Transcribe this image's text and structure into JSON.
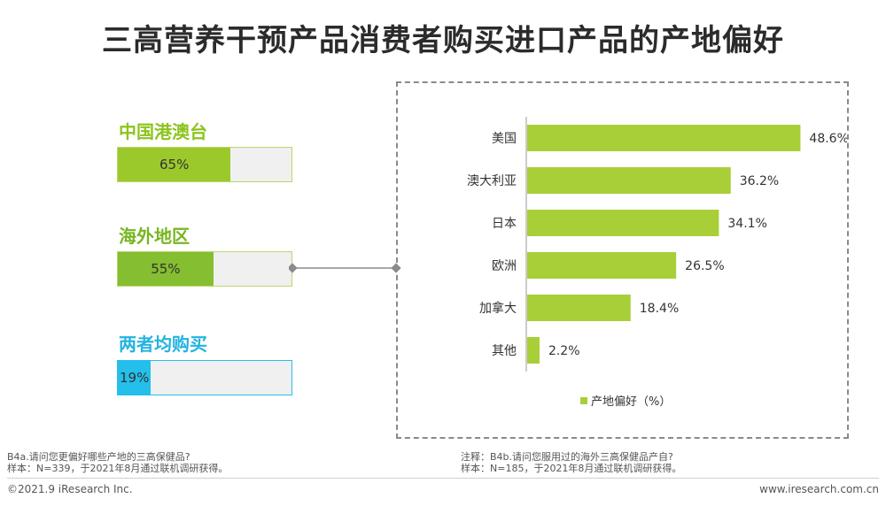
{
  "title": "三高营养干预产品消费者购买进口产品的产地偏好",
  "groups": [
    {
      "label": "中国港澳台",
      "value": 65,
      "value_label": "65%",
      "color": "#9bc92b",
      "text_color": "#8cc41e"
    },
    {
      "label": "海外地区",
      "value": 55,
      "value_label": "55%",
      "color": "#85be30",
      "text_color": "#78b51f"
    },
    {
      "label": "两者均购买",
      "value": 19,
      "value_label": "19%",
      "color": "#24bfea",
      "text_color": "#23b3e0"
    }
  ],
  "chart_data": {
    "type": "bar",
    "orientation": "horizontal",
    "categories": [
      "美国",
      "澳大利亚",
      "日本",
      "欧洲",
      "加拿大",
      "其他"
    ],
    "series": [
      {
        "name": "产地偏好（%）",
        "values": [
          48.6,
          36.2,
          34.1,
          26.5,
          18.4,
          2.2
        ],
        "color": "#a8cf38"
      }
    ],
    "value_labels": [
      "48.6%",
      "36.2%",
      "34.1%",
      "26.5%",
      "18.4%",
      "2.2%"
    ],
    "xlim": [
      0,
      52
    ],
    "legend_position": "bottom-center",
    "grid": false
  },
  "notes": {
    "left_line1": "B4a.请问您更偏好哪些产地的三高保健品?",
    "left_line2": "样本：N=339，于2021年8月通过联机调研获得。",
    "right_line1": "注释：B4b.请问您服用过的海外三高保健品产自?",
    "right_line2": "样本：N=185，于2021年8月通过联机调研获得。"
  },
  "footer": {
    "copyright": "©2021.9 iResearch Inc.",
    "website": "www.iresearch.com.cn"
  }
}
